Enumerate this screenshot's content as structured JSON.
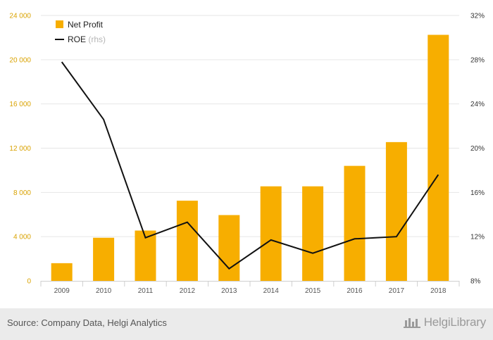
{
  "chart_data": {
    "type": "bar",
    "categories": [
      "2009",
      "2010",
      "2011",
      "2012",
      "2013",
      "2014",
      "2015",
      "2016",
      "2017",
      "2018"
    ],
    "series": [
      {
        "name": "Net Profit",
        "type": "bar",
        "axis": "left",
        "color": "#f7ae00",
        "values": [
          1600,
          3900,
          4550,
          7250,
          5950,
          8550,
          8550,
          10400,
          12550,
          22250
        ]
      },
      {
        "name": "ROE",
        "name_suffix": "(rhs)",
        "type": "line",
        "axis": "right",
        "color": "#111111",
        "values": [
          27.8,
          22.6,
          11.9,
          13.3,
          9.1,
          11.7,
          10.5,
          11.8,
          12.0,
          17.6
        ]
      }
    ],
    "yleft": {
      "lim": [
        0,
        24000
      ],
      "ticks": [
        "0",
        "4 000",
        "8 000",
        "12 000",
        "16 000",
        "20 000",
        "24 000"
      ],
      "tick_color": "#d9a200"
    },
    "yright": {
      "lim": [
        8,
        32
      ],
      "ticks": [
        "8%",
        "12%",
        "16%",
        "20%",
        "24%",
        "28%",
        "32%"
      ]
    },
    "grid": true,
    "legend": "top-left"
  },
  "footer": {
    "source": "Source: Company Data, Helgi Analytics",
    "brand": "HelgiLibrary"
  }
}
